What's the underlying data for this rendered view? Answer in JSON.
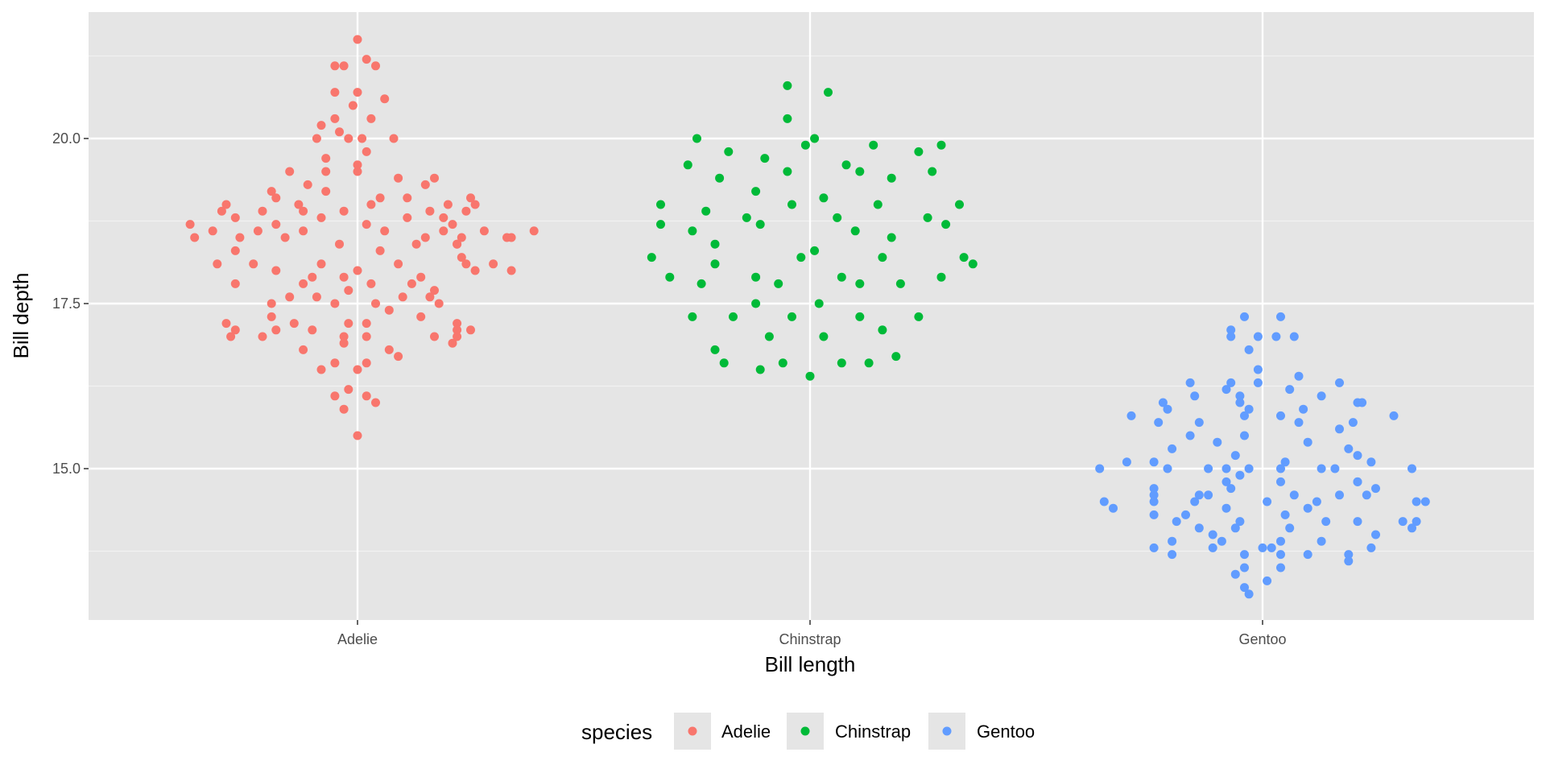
{
  "chart_data": {
    "type": "scatter",
    "xlabel": "Bill length",
    "ylabel": "Bill depth",
    "categories": [
      "Adelie",
      "Chinstrap",
      "Gentoo"
    ],
    "y_ticks": [
      15.0,
      17.5,
      20.0
    ],
    "y_tick_labels": [
      "15.0",
      "17.5",
      "20.0"
    ],
    "ylim": [
      12.8,
      21.9
    ],
    "grid": true,
    "legend": {
      "title": "species",
      "placement": "bottom",
      "entries": [
        "Adelie",
        "Chinstrap",
        "Gentoo"
      ]
    },
    "colors": {
      "Adelie": "#f8766d",
      "Chinstrap": "#00ba38",
      "Gentoo": "#619cff"
    },
    "series": [
      {
        "name": "Adelie",
        "y": [
          21.5,
          21.2,
          21.1,
          21.1,
          21.1,
          20.7,
          20.7,
          20.6,
          20.5,
          20.3,
          20.3,
          20.2,
          20.1,
          20.0,
          20.0,
          20.0,
          20.0,
          19.8,
          19.7,
          19.6,
          19.5,
          19.5,
          19.5,
          19.4,
          19.4,
          19.3,
          19.3,
          19.2,
          19.2,
          19.1,
          19.1,
          19.1,
          19.1,
          19.0,
          19.0,
          19.0,
          19.0,
          19.0,
          18.9,
          18.9,
          18.9,
          18.9,
          18.9,
          18.9,
          18.8,
          18.8,
          18.8,
          18.8,
          18.7,
          18.7,
          18.7,
          18.7,
          18.6,
          18.6,
          18.6,
          18.6,
          18.6,
          18.6,
          18.6,
          18.5,
          18.5,
          18.5,
          18.5,
          18.5,
          18.5,
          18.5,
          18.4,
          18.4,
          18.4,
          18.4,
          18.3,
          18.3,
          18.2,
          18.1,
          18.1,
          18.1,
          18.1,
          18.1,
          18.1,
          18.0,
          18.0,
          18.0,
          18.0,
          17.9,
          17.9,
          17.9,
          17.8,
          17.8,
          17.8,
          17.8,
          17.7,
          17.7,
          17.6,
          17.6,
          17.6,
          17.6,
          17.5,
          17.5,
          17.5,
          17.5,
          17.4,
          17.3,
          17.3,
          17.2,
          17.2,
          17.2,
          17.2,
          17.2,
          17.1,
          17.1,
          17.1,
          17.1,
          17.1,
          17.0,
          17.0,
          17.0,
          17.0,
          17.0,
          17.0,
          16.9,
          16.9,
          16.8,
          16.8,
          16.7,
          16.6,
          16.6,
          16.5,
          16.5,
          16.2,
          16.1,
          16.1,
          16.0,
          15.9,
          15.5
        ],
        "x_offset": [
          0.0,
          0.02,
          -0.05,
          -0.03,
          0.04,
          -0.05,
          0.0,
          0.06,
          -0.01,
          -0.05,
          0.03,
          -0.08,
          -0.04,
          -0.09,
          -0.02,
          0.01,
          0.08,
          0.02,
          -0.07,
          0.0,
          -0.15,
          -0.07,
          0.0,
          0.09,
          0.17,
          -0.11,
          0.15,
          -0.19,
          -0.07,
          -0.18,
          0.05,
          0.11,
          0.25,
          -0.29,
          -0.13,
          0.03,
          0.2,
          0.26,
          -0.3,
          -0.21,
          -0.12,
          -0.03,
          0.16,
          0.24,
          -0.27,
          -0.08,
          0.11,
          0.19,
          -0.37,
          -0.18,
          0.02,
          0.21,
          -0.32,
          -0.22,
          -0.12,
          0.06,
          0.19,
          0.28,
          0.39,
          -0.36,
          -0.26,
          -0.16,
          0.15,
          0.23,
          0.33,
          0.34,
          -0.04,
          0.13,
          0.22,
          0.22,
          -0.27,
          0.05,
          0.23,
          -0.31,
          -0.23,
          -0.08,
          0.09,
          0.24,
          0.3,
          -0.18,
          0.0,
          0.26,
          0.34,
          -0.1,
          -0.03,
          0.14,
          -0.27,
          -0.12,
          0.03,
          0.12,
          -0.02,
          0.17,
          -0.15,
          -0.09,
          0.1,
          0.16,
          -0.19,
          -0.05,
          0.04,
          0.18,
          0.07,
          -0.19,
          0.14,
          -0.29,
          -0.14,
          -0.02,
          0.02,
          0.22,
          -0.27,
          -0.18,
          -0.1,
          0.22,
          0.25,
          -0.28,
          -0.21,
          -0.03,
          0.02,
          0.17,
          0.22,
          -0.03,
          0.21,
          -0.12,
          0.07,
          0.09,
          -0.05,
          0.02,
          -0.08,
          0.0,
          -0.02,
          -0.05,
          0.02,
          0.04,
          -0.03,
          0.0
        ]
      },
      {
        "name": "Chinstrap",
        "y": [
          20.8,
          20.7,
          20.3,
          20.0,
          20.0,
          19.9,
          19.9,
          19.9,
          19.8,
          19.8,
          19.7,
          19.6,
          19.6,
          19.5,
          19.5,
          19.5,
          19.4,
          19.4,
          19.2,
          19.1,
          19.0,
          19.0,
          19.0,
          19.0,
          18.9,
          18.8,
          18.8,
          18.8,
          18.7,
          18.7,
          18.7,
          18.6,
          18.6,
          18.5,
          18.4,
          18.3,
          18.2,
          18.2,
          18.2,
          18.2,
          18.1,
          18.1,
          17.9,
          17.9,
          17.9,
          17.9,
          17.8,
          17.8,
          17.8,
          17.8,
          17.5,
          17.5,
          17.3,
          17.3,
          17.3,
          17.3,
          17.3,
          17.1,
          17.0,
          17.0,
          16.8,
          16.7,
          16.6,
          16.6,
          16.6,
          16.6,
          16.5,
          16.4
        ],
        "x_offset": [
          -0.05,
          0.04,
          -0.05,
          -0.25,
          0.01,
          -0.01,
          0.14,
          0.29,
          -0.18,
          0.24,
          -0.1,
          -0.27,
          0.08,
          -0.05,
          0.11,
          0.27,
          -0.2,
          0.18,
          -0.12,
          0.03,
          -0.33,
          -0.04,
          0.15,
          0.33,
          -0.23,
          -0.14,
          0.06,
          0.26,
          -0.33,
          -0.11,
          0.3,
          -0.26,
          0.1,
          0.18,
          -0.21,
          0.01,
          -0.35,
          -0.02,
          0.16,
          0.34,
          -0.21,
          0.36,
          -0.31,
          -0.12,
          0.07,
          0.29,
          -0.24,
          -0.07,
          0.11,
          0.2,
          -0.12,
          0.02,
          -0.26,
          -0.17,
          -0.04,
          0.11,
          0.24,
          0.16,
          -0.09,
          0.03,
          -0.21,
          0.19,
          -0.19,
          -0.06,
          0.07,
          0.13,
          -0.11,
          0.0
        ]
      },
      {
        "name": "Gentoo",
        "y": [
          17.3,
          17.3,
          17.1,
          17.0,
          17.0,
          17.0,
          17.0,
          16.8,
          16.5,
          16.4,
          16.3,
          16.3,
          16.3,
          16.3,
          16.2,
          16.2,
          16.1,
          16.1,
          16.1,
          16.0,
          16.0,
          16.0,
          16.0,
          15.9,
          15.9,
          15.9,
          15.8,
          15.8,
          15.8,
          15.8,
          15.7,
          15.7,
          15.7,
          15.7,
          15.6,
          15.5,
          15.5,
          15.4,
          15.4,
          15.3,
          15.3,
          15.2,
          15.2,
          15.1,
          15.1,
          15.1,
          15.1,
          15.0,
          15.0,
          15.0,
          15.0,
          15.0,
          15.0,
          15.0,
          15.0,
          15.0,
          14.9,
          14.8,
          14.8,
          14.8,
          14.8,
          14.7,
          14.7,
          14.7,
          14.6,
          14.6,
          14.6,
          14.6,
          14.6,
          14.6,
          14.5,
          14.5,
          14.5,
          14.5,
          14.5,
          14.5,
          14.5,
          14.4,
          14.4,
          14.4,
          14.3,
          14.3,
          14.3,
          14.2,
          14.2,
          14.2,
          14.2,
          14.2,
          14.2,
          14.1,
          14.1,
          14.1,
          14.1,
          14.0,
          14.0,
          13.9,
          13.9,
          13.9,
          13.9,
          13.8,
          13.8,
          13.8,
          13.8,
          13.8,
          13.7,
          13.7,
          13.7,
          13.7,
          13.7,
          13.6,
          13.5,
          13.5,
          13.4,
          13.3,
          13.2,
          13.1
        ],
        "x_offset": [
          -0.04,
          0.04,
          -0.07,
          0.03,
          -0.07,
          -0.01,
          0.07,
          -0.03,
          -0.01,
          0.08,
          -0.16,
          -0.07,
          -0.01,
          0.17,
          -0.08,
          0.06,
          -0.15,
          -0.05,
          0.13,
          -0.22,
          -0.05,
          0.21,
          0.22,
          -0.21,
          -0.03,
          0.09,
          -0.29,
          0.29,
          -0.04,
          0.04,
          -0.23,
          -0.14,
          0.08,
          0.2,
          0.17,
          -0.16,
          -0.04,
          -0.1,
          0.1,
          -0.2,
          0.19,
          -0.06,
          0.21,
          -0.3,
          -0.24,
          0.05,
          0.24,
          -0.36,
          -0.21,
          -0.12,
          -0.08,
          -0.03,
          0.04,
          0.13,
          0.16,
          0.33,
          -0.05,
          -0.08,
          0.04,
          0.21,
          0.21,
          -0.24,
          -0.07,
          0.25,
          -0.24,
          -0.14,
          -0.12,
          0.07,
          0.17,
          0.23,
          -0.35,
          -0.24,
          -0.15,
          0.01,
          0.12,
          0.34,
          0.36,
          -0.33,
          -0.08,
          0.1,
          -0.24,
          -0.17,
          0.05,
          -0.19,
          -0.05,
          0.14,
          0.21,
          0.31,
          0.34,
          -0.14,
          -0.06,
          0.06,
          0.33,
          -0.11,
          0.25,
          -0.2,
          -0.09,
          0.04,
          0.13,
          -0.24,
          0.0,
          -0.11,
          0.02,
          0.24,
          -0.2,
          -0.04,
          0.04,
          0.1,
          0.19,
          0.19,
          -0.04,
          0.04,
          -0.06,
          0.01,
          -0.04,
          -0.03
        ]
      }
    ]
  }
}
